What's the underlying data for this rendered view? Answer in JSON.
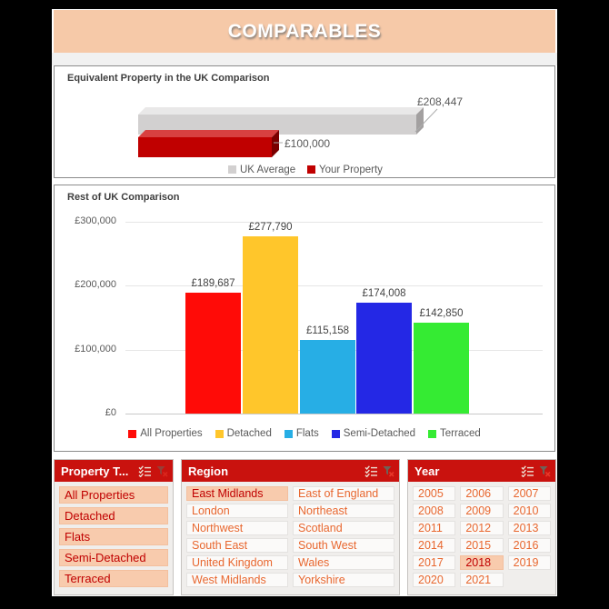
{
  "header": {
    "title": "COMPARABLES"
  },
  "chart_data": [
    {
      "type": "bar",
      "orientation": "horizontal",
      "style": "3d",
      "title": "Equivalent Property in the UK Comparison",
      "categories": [
        "UK Average",
        "Your Property"
      ],
      "values": [
        208447,
        100000
      ],
      "data_labels": [
        "£208,447",
        "£100,000"
      ],
      "xlim": [
        0,
        208447
      ],
      "legend_position": "bottom",
      "series_colors": [
        {
          "front": "#D2D0D0",
          "top": "#E9E8E8",
          "side": "#A3A0A0"
        },
        {
          "front": "#C00000",
          "top": "#D84040",
          "side": "#7A0000"
        }
      ]
    },
    {
      "type": "bar",
      "title": "Rest of UK Comparison",
      "categories": [
        "All Properties",
        "Detached",
        "Flats",
        "Semi-Detached",
        "Terraced"
      ],
      "values": [
        189687,
        277790,
        115158,
        174008,
        142850
      ],
      "data_labels": [
        "£189,687",
        "£277,790",
        "£115,158",
        "£174,008",
        "£142,850"
      ],
      "colors": [
        "#FF0B07",
        "#FFC62B",
        "#27AEE5",
        "#2428E5",
        "#35EB33"
      ],
      "ylim": [
        0,
        300000
      ],
      "y_ticks": [
        {
          "value": 0,
          "label": "£0"
        },
        {
          "value": 100000,
          "label": "£100,000"
        },
        {
          "value": 200000,
          "label": "£200,000"
        },
        {
          "value": 300000,
          "label": "£300,000"
        }
      ],
      "grid": true,
      "legend_position": "bottom"
    }
  ],
  "slicers": [
    {
      "id": "property-type",
      "title": "Property T...",
      "icons": [
        "multi-select",
        "clear-filter"
      ],
      "columns": 1,
      "items": [
        {
          "label": "All Properties",
          "selected": true
        },
        {
          "label": "Detached",
          "selected": true
        },
        {
          "label": "Flats",
          "selected": true
        },
        {
          "label": "Semi-Detached",
          "selected": true
        },
        {
          "label": "Terraced",
          "selected": true
        }
      ]
    },
    {
      "id": "region",
      "title": "Region",
      "icons": [
        "multi-select",
        "clear-filter"
      ],
      "columns": 2,
      "items": [
        {
          "label": "East Midlands",
          "selected": true
        },
        {
          "label": "East of England",
          "selected": false
        },
        {
          "label": "London",
          "selected": false
        },
        {
          "label": "Northeast",
          "selected": false
        },
        {
          "label": "Northwest",
          "selected": false
        },
        {
          "label": "Scotland",
          "selected": false
        },
        {
          "label": "South East",
          "selected": false
        },
        {
          "label": "South West",
          "selected": false
        },
        {
          "label": "United Kingdom",
          "selected": false
        },
        {
          "label": "Wales",
          "selected": false
        },
        {
          "label": "West Midlands",
          "selected": false
        },
        {
          "label": "Yorkshire",
          "selected": false
        }
      ]
    },
    {
      "id": "year",
      "title": "Year",
      "icons": [
        "multi-select",
        "clear-filter"
      ],
      "columns": 3,
      "items": [
        {
          "label": "2005",
          "selected": false
        },
        {
          "label": "2006",
          "selected": false
        },
        {
          "label": "2007",
          "selected": false
        },
        {
          "label": "2008",
          "selected": false
        },
        {
          "label": "2009",
          "selected": false
        },
        {
          "label": "2010",
          "selected": false
        },
        {
          "label": "2011",
          "selected": false
        },
        {
          "label": "2012",
          "selected": false
        },
        {
          "label": "2013",
          "selected": false
        },
        {
          "label": "2014",
          "selected": false
        },
        {
          "label": "2015",
          "selected": false
        },
        {
          "label": "2016",
          "selected": false
        },
        {
          "label": "2017",
          "selected": false
        },
        {
          "label": "2018",
          "selected": true
        },
        {
          "label": "2019",
          "selected": false
        },
        {
          "label": "2020",
          "selected": false
        },
        {
          "label": "2021",
          "selected": false
        }
      ]
    }
  ],
  "colors": {
    "page_bg": "#000000",
    "canvas_bg": "#FFFFFF",
    "banner_bg": "#F6C9A8",
    "banner_text": "#FFFFFF",
    "slicer_header_bg": "#C9120E",
    "slicer_body_bg": "#F0EEEC",
    "item_selected_bg": "#F8CBAD",
    "item_selected_text": "#C00000",
    "item_bg": "#FBFAF9",
    "item_text": "#E8672F"
  }
}
